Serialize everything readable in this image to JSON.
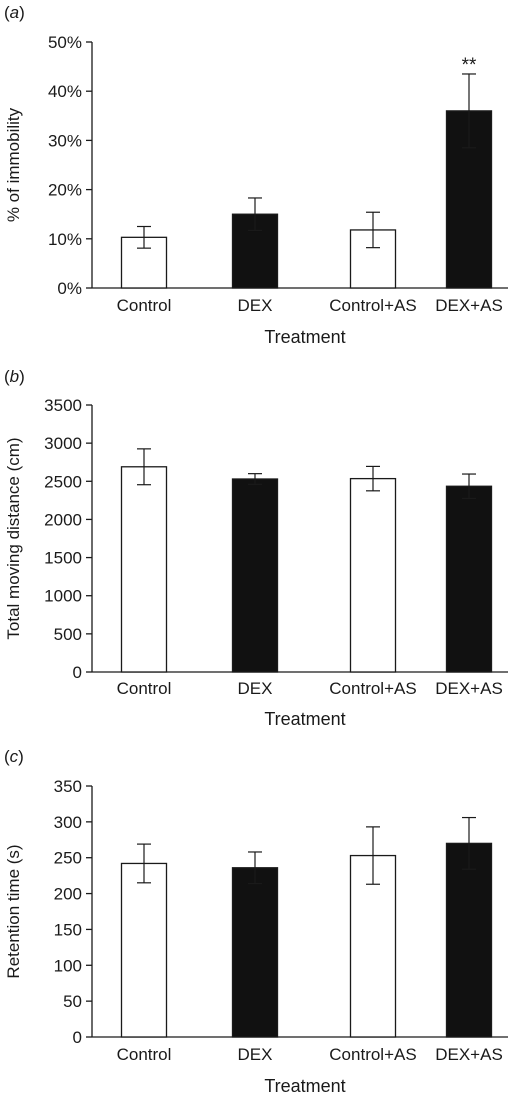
{
  "chart_data": [
    {
      "type": "bar",
      "panel_label": "(a)",
      "panel_letter": "a",
      "categories": [
        "Control",
        "DEX",
        "Control+AS",
        "DEX+AS"
      ],
      "values": [
        10.3,
        15,
        11.8,
        36
      ],
      "errors": [
        2.2,
        3.3,
        3.6,
        7.5
      ],
      "fills": [
        "#ffffff",
        "#111111",
        "#ffffff",
        "#111111"
      ],
      "annotations": [
        "",
        "",
        "",
        "**"
      ],
      "ylabel": "% of immobility",
      "xlabel": "Treatment",
      "ylim": [
        0,
        50
      ],
      "yticks": [
        0,
        10,
        20,
        30,
        40,
        50
      ],
      "ytick_labels": [
        "0%",
        "10%",
        "20%",
        "30%",
        "40%",
        "50%"
      ],
      "grid": false,
      "legend": "none"
    },
    {
      "type": "bar",
      "panel_label": "(b)",
      "panel_letter": "b",
      "categories": [
        "Control",
        "DEX",
        "Control+AS",
        "DEX+AS"
      ],
      "values": [
        2690,
        2530,
        2535,
        2435
      ],
      "errors": [
        235,
        70,
        160,
        160
      ],
      "fills": [
        "#ffffff",
        "#111111",
        "#ffffff",
        "#111111"
      ],
      "annotations": [
        "",
        "",
        "",
        ""
      ],
      "ylabel": "Total moving distance (cm)",
      "xlabel": "Treatment",
      "ylim": [
        0,
        3500
      ],
      "yticks": [
        0,
        500,
        1000,
        1500,
        2000,
        2500,
        3000,
        3500
      ],
      "ytick_labels": [
        "0",
        "500",
        "1000",
        "1500",
        "2000",
        "2500",
        "3000",
        "3500"
      ],
      "grid": false,
      "legend": "none"
    },
    {
      "type": "bar",
      "panel_label": "(c)",
      "panel_letter": "c",
      "categories": [
        "Control",
        "DEX",
        "Control+AS",
        "DEX+AS"
      ],
      "values": [
        242,
        236,
        253,
        270
      ],
      "errors": [
        27,
        22,
        40,
        36
      ],
      "fills": [
        "#ffffff",
        "#111111",
        "#ffffff",
        "#111111"
      ],
      "annotations": [
        "",
        "",
        "",
        ""
      ],
      "ylabel": "Retention time (s)",
      "xlabel": "Treatment",
      "ylim": [
        0,
        350
      ],
      "yticks": [
        0,
        50,
        100,
        150,
        200,
        250,
        300,
        350
      ],
      "ytick_labels": [
        "0",
        "50",
        "100",
        "150",
        "200",
        "250",
        "300",
        "350"
      ],
      "grid": false,
      "legend": "none"
    }
  ]
}
